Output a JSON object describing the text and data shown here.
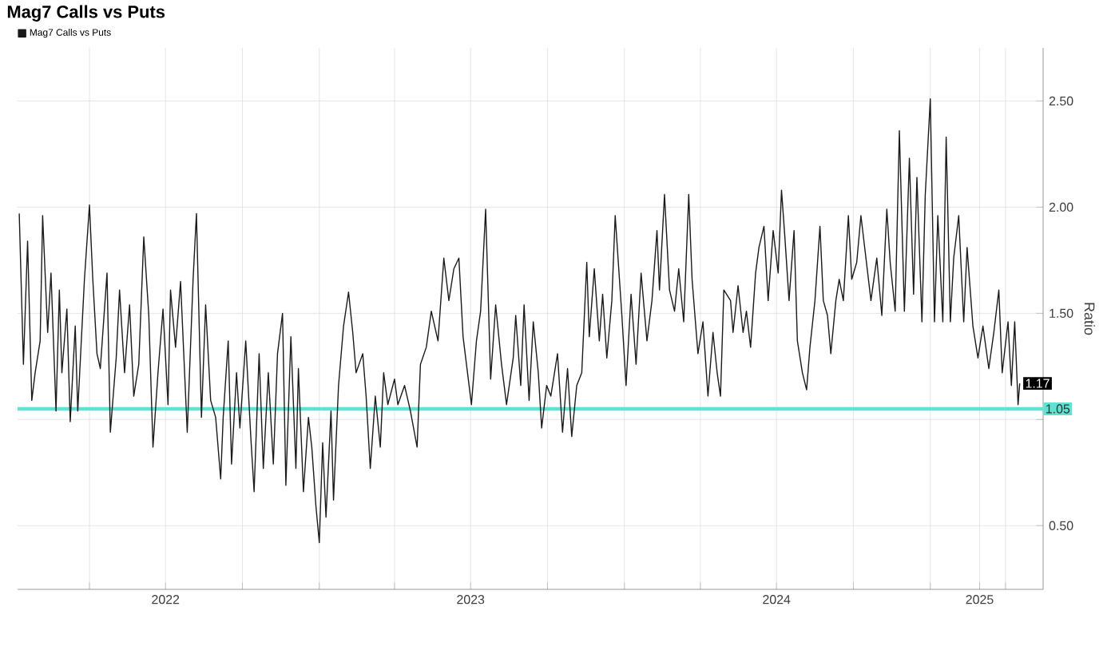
{
  "chart_data": {
    "type": "line",
    "title": "Mag7 Calls vs Puts",
    "ylabel": "Ratio",
    "x": [
      "2022-01-07",
      "2022-01-12",
      "2022-01-17",
      "2022-01-22",
      "2022-01-26",
      "2022-02-01",
      "2022-02-04",
      "2022-02-10",
      "2022-02-14",
      "2022-02-20",
      "2022-02-24",
      "2022-02-27",
      "2022-03-05",
      "2022-03-09",
      "2022-03-15",
      "2022-03-18",
      "2022-03-26",
      "2022-04-01",
      "2022-04-05",
      "2022-04-10",
      "2022-04-14",
      "2022-04-22",
      "2022-04-26",
      "2022-05-03",
      "2022-05-07",
      "2022-05-13",
      "2022-05-19",
      "2022-05-24",
      "2022-05-30",
      "2022-06-05",
      "2022-06-11",
      "2022-06-16",
      "2022-06-22",
      "2022-06-28",
      "2022-07-04",
      "2022-07-07",
      "2022-07-13",
      "2022-07-19",
      "2022-07-27",
      "2022-08-03",
      "2022-08-07",
      "2022-08-13",
      "2022-08-18",
      "2022-08-24",
      "2022-08-30",
      "2022-09-05",
      "2022-09-08",
      "2022-09-14",
      "2022-09-18",
      "2022-09-24",
      "2022-09-28",
      "2022-10-05",
      "2022-10-11",
      "2022-10-15",
      "2022-10-21",
      "2022-10-26",
      "2022-11-01",
      "2022-11-07",
      "2022-11-12",
      "2022-11-18",
      "2022-11-22",
      "2022-11-28",
      "2022-12-04",
      "2022-12-07",
      "2022-12-13",
      "2022-12-19",
      "2022-12-23",
      "2022-12-28",
      "2023-01-01",
      "2023-01-05",
      "2023-01-09",
      "2023-01-15",
      "2023-01-18",
      "2023-01-24",
      "2023-01-30",
      "2023-02-05",
      "2023-02-10",
      "2023-02-14",
      "2023-02-22",
      "2023-02-26",
      "2023-03-03",
      "2023-03-09",
      "2023-03-15",
      "2023-03-19",
      "2023-03-24",
      "2023-04-01",
      "2023-04-05",
      "2023-04-13",
      "2023-04-20",
      "2023-04-28",
      "2023-05-02",
      "2023-05-09",
      "2023-05-15",
      "2023-05-23",
      "2023-05-30",
      "2023-06-05",
      "2023-06-11",
      "2023-06-17",
      "2023-06-22",
      "2023-07-02",
      "2023-07-08",
      "2023-07-13",
      "2023-07-19",
      "2023-07-25",
      "2023-07-31",
      "2023-08-07",
      "2023-08-13",
      "2023-08-21",
      "2023-08-24",
      "2023-08-30",
      "2023-09-03",
      "2023-09-09",
      "2023-09-14",
      "2023-09-20",
      "2023-09-24",
      "2023-09-30",
      "2023-10-05",
      "2023-10-13",
      "2023-10-19",
      "2023-10-25",
      "2023-10-30",
      "2023-11-05",
      "2023-11-11",
      "2023-11-17",
      "2023-11-20",
      "2023-11-26",
      "2023-12-02",
      "2023-12-06",
      "2023-12-11",
      "2023-12-17",
      "2023-12-21",
      "2023-12-29",
      "2024-01-03",
      "2024-01-09",
      "2024-01-15",
      "2024-01-21",
      "2024-01-28",
      "2024-02-03",
      "2024-02-09",
      "2024-02-12",
      "2024-02-18",
      "2024-02-24",
      "2024-03-01",
      "2024-03-06",
      "2024-03-12",
      "2024-03-18",
      "2024-03-22",
      "2024-03-29",
      "2024-04-04",
      "2024-04-10",
      "2024-04-16",
      "2024-04-21",
      "2024-04-25",
      "2024-04-29",
      "2024-05-07",
      "2024-05-10",
      "2024-05-16",
      "2024-05-22",
      "2024-05-26",
      "2024-05-31",
      "2024-06-06",
      "2024-06-10",
      "2024-06-16",
      "2024-06-21",
      "2024-06-27",
      "2024-07-03",
      "2024-07-07",
      "2024-07-11",
      "2024-07-16",
      "2024-07-22",
      "2024-07-26",
      "2024-08-01",
      "2024-08-06",
      "2024-08-10",
      "2024-08-16",
      "2024-08-22",
      "2024-08-26",
      "2024-08-31",
      "2024-09-04",
      "2024-09-10",
      "2024-09-14",
      "2024-09-19",
      "2024-09-25",
      "2024-09-29",
      "2024-10-05",
      "2024-10-10",
      "2024-10-16",
      "2024-10-22",
      "2024-10-29",
      "2024-11-04",
      "2024-11-10",
      "2024-11-14",
      "2024-11-20",
      "2024-11-25",
      "2024-12-01",
      "2024-12-07",
      "2024-12-12",
      "2024-12-16",
      "2024-12-22",
      "2024-12-26",
      "2025-01-01",
      "2025-01-06",
      "2025-01-10",
      "2025-01-16",
      "2025-01-20",
      "2025-01-25",
      "2025-01-29",
      "2025-02-04",
      "2025-02-10",
      "2025-02-14",
      "2025-02-21",
      "2025-02-27",
      "2025-03-05",
      "2025-03-12",
      "2025-03-18",
      "2025-03-24",
      "2025-03-28",
      "2025-04-04",
      "2025-04-08",
      "2025-04-12",
      "2025-04-16",
      "2025-04-18"
    ],
    "series": [
      {
        "name": "Mag7 Calls vs Puts",
        "color": "#1a1a1a",
        "values": [
          1.97,
          1.26,
          1.84,
          1.09,
          1.22,
          1.37,
          1.96,
          1.41,
          1.69,
          1.04,
          1.61,
          1.22,
          1.52,
          0.99,
          1.44,
          1.04,
          1.66,
          2.01,
          1.66,
          1.31,
          1.24,
          1.69,
          0.94,
          1.29,
          1.61,
          1.22,
          1.54,
          1.11,
          1.26,
          1.86,
          1.49,
          0.87,
          1.22,
          1.52,
          1.07,
          1.61,
          1.34,
          1.65,
          0.94,
          1.66,
          1.97,
          1.01,
          1.54,
          1.09,
          1.01,
          0.72,
          1.01,
          1.37,
          0.79,
          1.22,
          0.96,
          1.37,
          0.92,
          0.66,
          1.31,
          0.77,
          1.22,
          0.79,
          1.31,
          1.5,
          0.69,
          1.39,
          0.77,
          1.24,
          0.66,
          1.01,
          0.87,
          0.59,
          0.42,
          0.89,
          0.54,
          1.04,
          0.62,
          1.16,
          1.44,
          1.6,
          1.41,
          1.22,
          1.31,
          1.11,
          0.77,
          1.11,
          0.87,
          1.22,
          1.07,
          1.19,
          1.07,
          1.16,
          1.04,
          0.87,
          1.26,
          1.34,
          1.51,
          1.37,
          1.76,
          1.56,
          1.71,
          1.76,
          1.39,
          1.07,
          1.37,
          1.51,
          1.99,
          1.19,
          1.54,
          1.26,
          1.07,
          1.29,
          1.49,
          1.16,
          1.54,
          1.09,
          1.46,
          1.22,
          0.96,
          1.16,
          1.11,
          1.31,
          0.94,
          1.24,
          0.92,
          1.16,
          1.22,
          1.74,
          1.39,
          1.71,
          1.37,
          1.59,
          1.29,
          1.56,
          1.96,
          1.49,
          1.16,
          1.59,
          1.26,
          1.69,
          1.37,
          1.56,
          1.89,
          1.61,
          2.06,
          1.61,
          1.51,
          1.71,
          1.46,
          2.06,
          1.66,
          1.31,
          1.46,
          1.11,
          1.41,
          1.22,
          1.11,
          1.61,
          1.56,
          1.41,
          1.63,
          1.41,
          1.51,
          1.34,
          1.69,
          1.81,
          1.91,
          1.56,
          1.89,
          1.69,
          2.08,
          1.86,
          1.56,
          1.89,
          1.37,
          1.22,
          1.14,
          1.34,
          1.56,
          1.91,
          1.56,
          1.49,
          1.31,
          1.56,
          1.66,
          1.56,
          1.96,
          1.66,
          1.74,
          1.96,
          1.76,
          1.56,
          1.76,
          1.49,
          1.99,
          1.74,
          1.51,
          2.36,
          1.51,
          2.23,
          1.59,
          2.14,
          1.46,
          2.06,
          2.51,
          1.46,
          1.96,
          1.46,
          2.33,
          1.46,
          1.76,
          1.96,
          1.46,
          1.81,
          1.44,
          1.29,
          1.44,
          1.24,
          1.41,
          1.61,
          1.22,
          1.46,
          1.16,
          1.46,
          1.07,
          1.17
        ]
      }
    ],
    "xlim": [
      "2022-01-05",
      "2025-05-16"
    ],
    "xticks": [
      {
        "value": "2022-04-01",
        "label": null
      },
      {
        "value": "2022-07-01",
        "label": "2022"
      },
      {
        "value": "2022-10-01",
        "label": null
      },
      {
        "value": "2023-01-01",
        "label": null
      },
      {
        "value": "2023-04-01",
        "label": null
      },
      {
        "value": "2023-07-01",
        "label": "2023"
      },
      {
        "value": "2023-10-01",
        "label": null
      },
      {
        "value": "2024-01-01",
        "label": null
      },
      {
        "value": "2024-04-01",
        "label": null
      },
      {
        "value": "2024-07-01",
        "label": "2024"
      },
      {
        "value": "2024-10-01",
        "label": null
      },
      {
        "value": "2025-01-01",
        "label": null
      },
      {
        "value": "2025-03-01",
        "label": "2025"
      },
      {
        "value": "2025-04-01",
        "label": null
      }
    ],
    "ylim": [
      0.2,
      2.75
    ],
    "yticks": [
      {
        "value": 0.5,
        "label": "0.50"
      },
      {
        "value": 1.0,
        "label": null
      },
      {
        "value": 1.5,
        "label": "1.50"
      },
      {
        "value": 2.0,
        "label": "2.00"
      },
      {
        "value": 2.5,
        "label": "2.50"
      }
    ],
    "grid": true,
    "legend": "top left",
    "ref_lines": [
      {
        "axis": "y",
        "value": 1.05,
        "label": "1.05",
        "color": "#5ee3d2"
      }
    ],
    "annotations": [
      {
        "text": "1.17",
        "x": "2025-04-18",
        "y": 1.17
      }
    ]
  }
}
